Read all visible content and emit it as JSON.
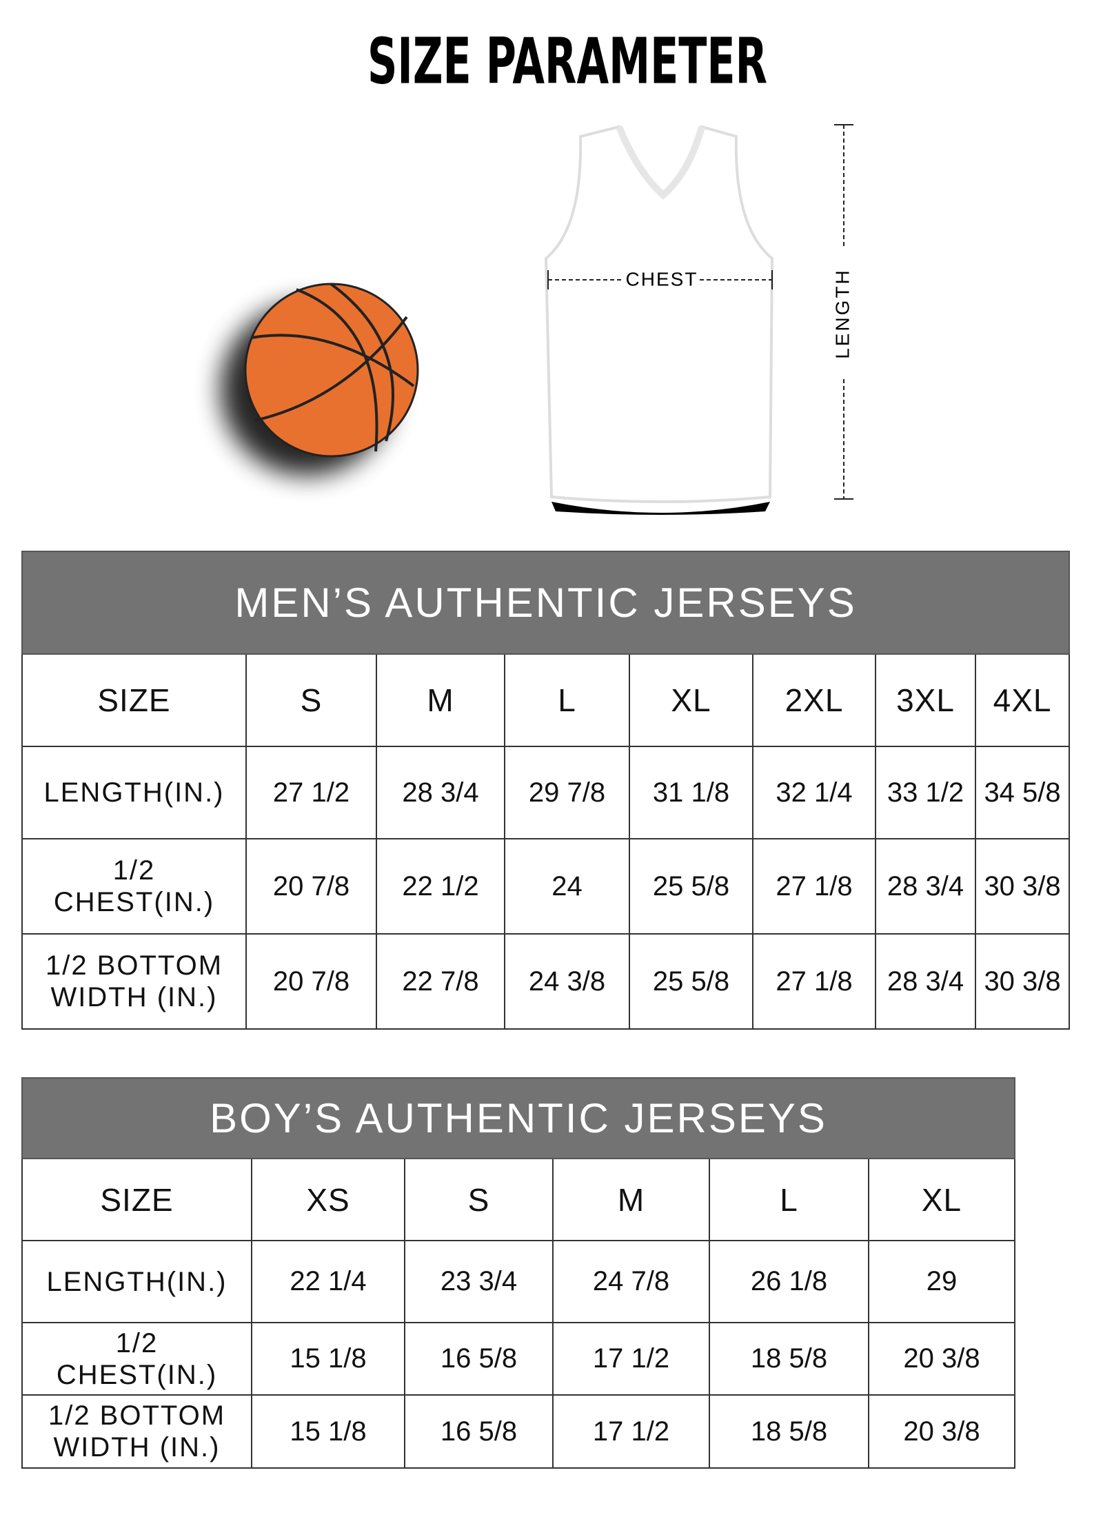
{
  "header": {
    "title": "SIZE PARAMETER"
  },
  "diagram": {
    "chest_label": "CHEST",
    "length_label": "LENGTH"
  },
  "tables": [
    {
      "title": "MEN’S AUTHENTIC JERSEYS",
      "columns": [
        "SIZE",
        "S",
        "M",
        "L",
        "XL",
        "2XL",
        "3XL",
        "4XL"
      ],
      "rows": [
        {
          "label": "LENGTH(IN.)",
          "values": [
            "27 1/2",
            "28 3/4",
            "29 7/8",
            "31 1/8",
            "32 1/4",
            "33 1/2",
            "34 5/8"
          ]
        },
        {
          "label": "1/2 CHEST(IN.)",
          "values": [
            "20 7/8",
            "22 1/2",
            "24",
            "25 5/8",
            "27 1/8",
            "28 3/4",
            "30 3/8"
          ]
        },
        {
          "label": "1/2 BOTTOM WIDTH (IN.)",
          "values": [
            "20 7/8",
            "22 7/8",
            "24 3/8",
            "25 5/8",
            "27 1/8",
            "28 3/4",
            "30 3/8"
          ]
        }
      ]
    },
    {
      "title": "BOY’S AUTHENTIC JERSEYS",
      "columns": [
        "SIZE",
        "XS",
        "S",
        "M",
        "L",
        "XL"
      ],
      "rows": [
        {
          "label": "LENGTH(IN.)",
          "values": [
            "22 1/4",
            "23 3/4",
            "24 7/8",
            "26 1/8",
            "29"
          ]
        },
        {
          "label": "1/2 CHEST(IN.)",
          "values": [
            "15 1/8",
            "16 5/8",
            "17 1/2",
            "18 5/8",
            "20 3/8"
          ]
        },
        {
          "label": "1/2 BOTTOM WIDTH (IN.)",
          "values": [
            "15 1/8",
            "16 5/8",
            "17 1/2",
            "18 5/8",
            "20 3/8"
          ]
        }
      ]
    }
  ]
}
